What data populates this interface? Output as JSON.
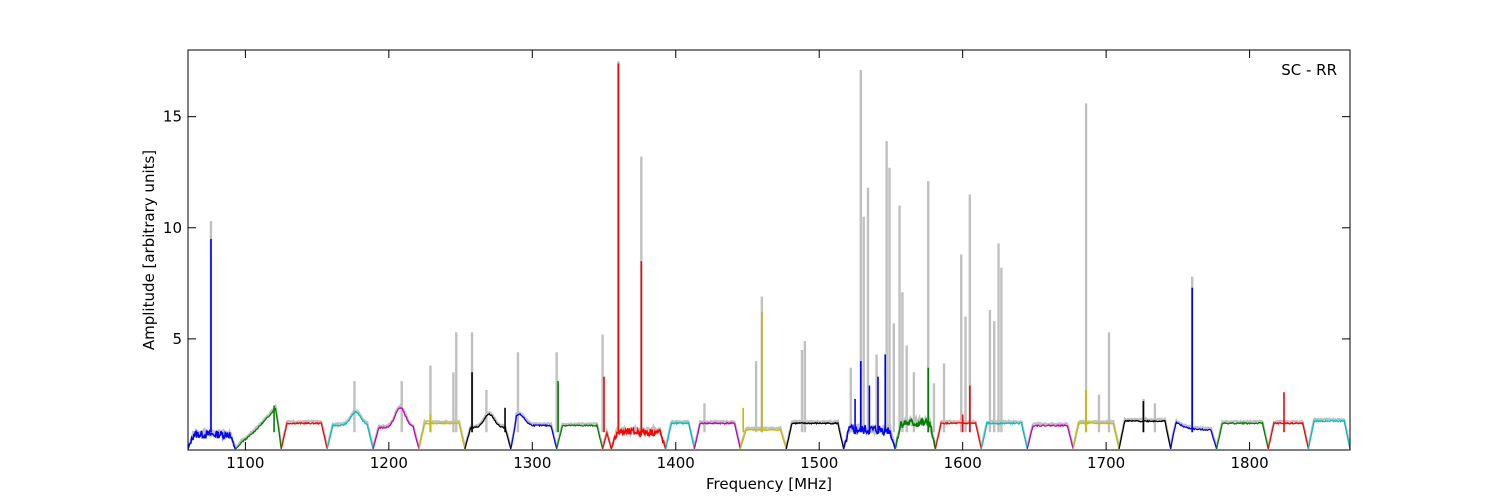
{
  "chart_data": {
    "type": "line",
    "title": "",
    "annotation": "SC - RR",
    "xlabel": "Frequency [MHz]",
    "ylabel": "Amplitude [arbitrary units]",
    "xlim": [
      1060,
      1870
    ],
    "ylim": [
      0,
      18
    ],
    "xticks": [
      1100,
      1200,
      1300,
      1400,
      1500,
      1600,
      1700,
      1800
    ],
    "yticks": [
      5,
      10,
      15
    ],
    "background_color": "#c0c0c0",
    "band_colors": [
      "#0000ff",
      "#008000",
      "#ff0000",
      "#00bfbf",
      "#bf00bf",
      "#bfbf00",
      "#000000"
    ],
    "bands": [
      {
        "x0": 1060,
        "x1": 1093,
        "level": 0.7,
        "noise": 0.35,
        "color": "#0000ff"
      },
      {
        "x0": 1093,
        "x1": 1125,
        "level": 1.2,
        "shape": "ramp",
        "color": "#008000"
      },
      {
        "x0": 1125,
        "x1": 1157,
        "level": 1.2,
        "color": "#ff0000"
      },
      {
        "x0": 1157,
        "x1": 1189,
        "level": 1.1,
        "shape": "bump",
        "bumpx": 1177,
        "bumph": 1.7,
        "color": "#00bfbf"
      },
      {
        "x0": 1189,
        "x1": 1221,
        "level": 1.0,
        "shape": "bump",
        "bumpx": 1208,
        "bumph": 1.9,
        "color": "#bf00bf"
      },
      {
        "x0": 1221,
        "x1": 1253,
        "level": 1.2,
        "color": "#bfbf00"
      },
      {
        "x0": 1253,
        "x1": 1285,
        "level": 1.0,
        "shape": "bump",
        "bumpx": 1270,
        "bumph": 1.6,
        "color": "#000000"
      },
      {
        "x0": 1285,
        "x1": 1317,
        "level": 1.1,
        "shape": "bump",
        "bumpx": 1291,
        "bumph": 1.6,
        "color": "#0000ff"
      },
      {
        "x0": 1317,
        "x1": 1349,
        "level": 1.1,
        "color": "#008000"
      },
      {
        "x0": 1349,
        "x1": 1355,
        "level": 1.0,
        "color": "#ff0000"
      },
      {
        "x0": 1355,
        "x1": 1393,
        "level": 0.8,
        "noise": 0.35,
        "color": "#ff0000"
      },
      {
        "x0": 1393,
        "x1": 1413,
        "level": 1.2,
        "color": "#00bfbf"
      },
      {
        "x0": 1413,
        "x1": 1445,
        "level": 1.2,
        "color": "#bf00bf"
      },
      {
        "x0": 1445,
        "x1": 1477,
        "level": 0.9,
        "color": "#bfbf00"
      },
      {
        "x0": 1477,
        "x1": 1517,
        "level": 1.2,
        "color": "#000000"
      },
      {
        "x0": 1517,
        "x1": 1553,
        "level": 0.9,
        "noise": 0.45,
        "color": "#0000ff"
      },
      {
        "x0": 1553,
        "x1": 1581,
        "level": 1.2,
        "noise": 0.4,
        "color": "#008000"
      },
      {
        "x0": 1581,
        "x1": 1613,
        "level": 1.2,
        "color": "#ff0000"
      },
      {
        "x0": 1613,
        "x1": 1645,
        "level": 1.2,
        "color": "#00bfbf"
      },
      {
        "x0": 1645,
        "x1": 1677,
        "level": 1.1,
        "color": "#bf00bf"
      },
      {
        "x0": 1677,
        "x1": 1709,
        "level": 1.2,
        "color": "#bfbf00"
      },
      {
        "x0": 1709,
        "x1": 1745,
        "level": 1.3,
        "color": "#000000"
      },
      {
        "x0": 1745,
        "x1": 1777,
        "level": 0.9,
        "shape": "decay",
        "bumph": 1.6,
        "color": "#0000ff"
      },
      {
        "x0": 1777,
        "x1": 1813,
        "level": 1.2,
        "color": "#008000"
      },
      {
        "x0": 1813,
        "x1": 1841,
        "level": 1.2,
        "color": "#ff0000"
      },
      {
        "x0": 1841,
        "x1": 1870,
        "level": 1.3,
        "color": "#00bfbf"
      }
    ],
    "background_spikes": [
      {
        "x": 1076,
        "y": 10.3
      },
      {
        "x": 1176,
        "y": 3.1
      },
      {
        "x": 1209,
        "y": 3.1
      },
      {
        "x": 1229,
        "y": 3.8
      },
      {
        "x": 1245,
        "y": 3.5
      },
      {
        "x": 1247,
        "y": 5.3
      },
      {
        "x": 1258,
        "y": 5.3
      },
      {
        "x": 1268,
        "y": 2.7
      },
      {
        "x": 1290,
        "y": 4.4
      },
      {
        "x": 1317,
        "y": 4.4
      },
      {
        "x": 1349,
        "y": 5.2
      },
      {
        "x": 1360,
        "y": 17.5
      },
      {
        "x": 1376,
        "y": 13.2
      },
      {
        "x": 1420,
        "y": 2.1
      },
      {
        "x": 1456,
        "y": 4.0
      },
      {
        "x": 1460,
        "y": 6.9
      },
      {
        "x": 1488,
        "y": 4.5
      },
      {
        "x": 1490,
        "y": 4.9
      },
      {
        "x": 1522,
        "y": 3.7
      },
      {
        "x": 1529,
        "y": 17.1
      },
      {
        "x": 1531,
        "y": 10.5
      },
      {
        "x": 1534,
        "y": 11.8
      },
      {
        "x": 1540,
        "y": 4.3
      },
      {
        "x": 1547,
        "y": 13.9
      },
      {
        "x": 1549,
        "y": 12.7
      },
      {
        "x": 1552,
        "y": 5.7
      },
      {
        "x": 1556,
        "y": 11.0
      },
      {
        "x": 1558,
        "y": 7.1
      },
      {
        "x": 1561,
        "y": 4.7
      },
      {
        "x": 1566,
        "y": 3.5
      },
      {
        "x": 1576,
        "y": 12.1
      },
      {
        "x": 1580,
        "y": 3.0
      },
      {
        "x": 1587,
        "y": 3.9
      },
      {
        "x": 1599,
        "y": 8.8
      },
      {
        "x": 1602,
        "y": 6.0
      },
      {
        "x": 1605,
        "y": 11.5
      },
      {
        "x": 1619,
        "y": 6.3
      },
      {
        "x": 1622,
        "y": 5.8
      },
      {
        "x": 1625,
        "y": 9.3
      },
      {
        "x": 1627,
        "y": 8.2
      },
      {
        "x": 1686,
        "y": 15.6
      },
      {
        "x": 1695,
        "y": 2.5
      },
      {
        "x": 1702,
        "y": 5.3
      },
      {
        "x": 1726,
        "y": 2.3
      },
      {
        "x": 1734,
        "y": 2.1
      },
      {
        "x": 1760,
        "y": 7.8
      }
    ],
    "spikes": [
      {
        "x": 1076,
        "y": 9.5,
        "color": "#0000ff"
      },
      {
        "x": 1120,
        "y": 2.0,
        "color": "#008000"
      },
      {
        "x": 1229,
        "y": 1.6,
        "color": "#bfbf00"
      },
      {
        "x": 1258,
        "y": 3.5,
        "color": "#000000"
      },
      {
        "x": 1281,
        "y": 1.9,
        "color": "#000000"
      },
      {
        "x": 1318,
        "y": 3.1,
        "color": "#008000"
      },
      {
        "x": 1350,
        "y": 3.3,
        "color": "#ff0000"
      },
      {
        "x": 1360,
        "y": 17.4,
        "color": "#ff0000"
      },
      {
        "x": 1376,
        "y": 8.5,
        "color": "#ff0000"
      },
      {
        "x": 1447,
        "y": 1.9,
        "color": "#bfbf00"
      },
      {
        "x": 1460,
        "y": 6.2,
        "color": "#bfbf00"
      },
      {
        "x": 1525,
        "y": 2.3,
        "color": "#0000ff"
      },
      {
        "x": 1529,
        "y": 4.0,
        "color": "#0000ff"
      },
      {
        "x": 1535,
        "y": 2.9,
        "color": "#0000ff"
      },
      {
        "x": 1541,
        "y": 3.3,
        "color": "#0000ff"
      },
      {
        "x": 1546,
        "y": 4.3,
        "color": "#0000ff"
      },
      {
        "x": 1576,
        "y": 3.7,
        "color": "#008000"
      },
      {
        "x": 1600,
        "y": 1.6,
        "color": "#ff0000"
      },
      {
        "x": 1605,
        "y": 2.9,
        "color": "#ff0000"
      },
      {
        "x": 1686,
        "y": 2.7,
        "color": "#bfbf00"
      },
      {
        "x": 1726,
        "y": 2.2,
        "color": "#000000"
      },
      {
        "x": 1760,
        "y": 7.3,
        "color": "#0000ff"
      },
      {
        "x": 1824,
        "y": 2.6,
        "color": "#ff0000"
      }
    ],
    "grid": false,
    "legend": "none"
  }
}
